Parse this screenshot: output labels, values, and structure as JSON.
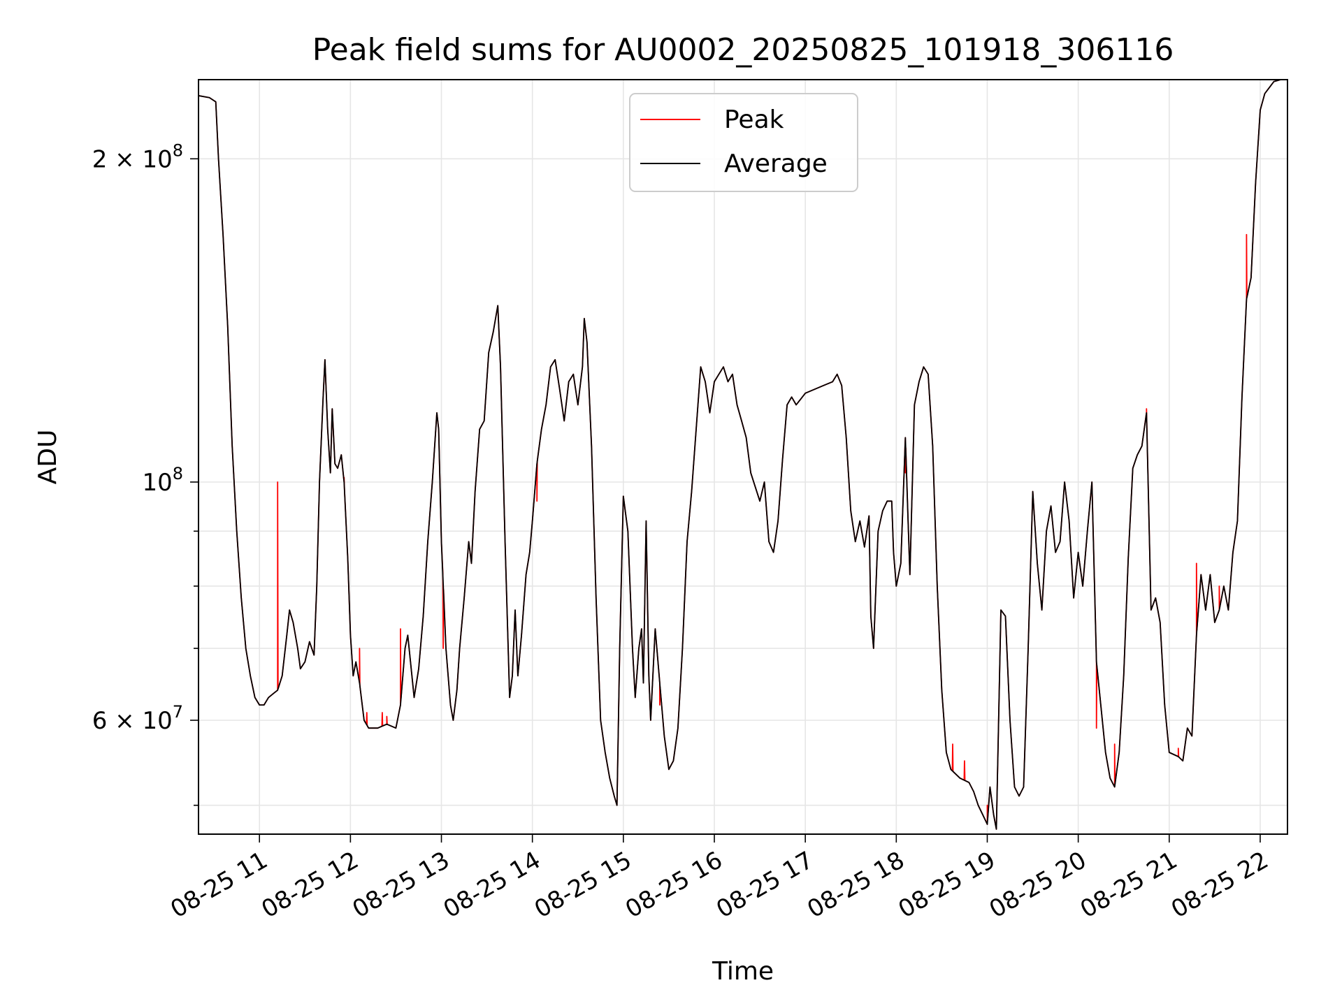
{
  "chart_data": {
    "type": "line",
    "title": "Peak field sums for AU0002_20250825_101918_306116",
    "xlabel": "Time",
    "ylabel": "ADU",
    "yscale": "log",
    "ylim": [
      47000000,
      237000000
    ],
    "xlim_hours": [
      10.33,
      22.3
    ],
    "grid": true,
    "legend_position": "upper center",
    "xticks": [
      {
        "hour": 11,
        "label": "08-25 11"
      },
      {
        "hour": 12,
        "label": "08-25 12"
      },
      {
        "hour": 13,
        "label": "08-25 13"
      },
      {
        "hour": 14,
        "label": "08-25 14"
      },
      {
        "hour": 15,
        "label": "08-25 15"
      },
      {
        "hour": 16,
        "label": "08-25 16"
      },
      {
        "hour": 17,
        "label": "08-25 17"
      },
      {
        "hour": 18,
        "label": "08-25 18"
      },
      {
        "hour": 19,
        "label": "08-25 19"
      },
      {
        "hour": 20,
        "label": "08-25 20"
      },
      {
        "hour": 21,
        "label": "08-25 21"
      },
      {
        "hour": 22,
        "label": "08-25 22"
      }
    ],
    "yticks_major": [
      {
        "value": 60000000,
        "mantissa": "6",
        "exponent": "7"
      },
      {
        "value": 100000000,
        "mantissa": "",
        "exponent": "8"
      },
      {
        "value": 200000000,
        "mantissa": "2",
        "exponent": "8"
      }
    ],
    "yticks_minor": [
      50000000,
      70000000,
      80000000,
      90000000
    ],
    "series": [
      {
        "name": "Average",
        "color": "#000000",
        "points": [
          [
            10.33,
            229
          ],
          [
            10.45,
            228
          ],
          [
            10.52,
            226
          ],
          [
            10.55,
            200
          ],
          [
            10.6,
            170
          ],
          [
            10.65,
            140
          ],
          [
            10.7,
            108
          ],
          [
            10.75,
            90
          ],
          [
            10.8,
            78
          ],
          [
            10.85,
            70
          ],
          [
            10.9,
            66
          ],
          [
            10.95,
            63
          ],
          [
            11.0,
            62
          ],
          [
            11.05,
            62
          ],
          [
            11.1,
            63
          ],
          [
            11.15,
            63.5
          ],
          [
            11.2,
            64
          ],
          [
            11.25,
            66
          ],
          [
            11.3,
            72
          ],
          [
            11.33,
            76
          ],
          [
            11.37,
            74
          ],
          [
            11.42,
            70
          ],
          [
            11.45,
            67
          ],
          [
            11.5,
            68
          ],
          [
            11.55,
            71
          ],
          [
            11.6,
            69
          ],
          [
            11.63,
            80
          ],
          [
            11.66,
            100
          ],
          [
            11.7,
            120
          ],
          [
            11.72,
            130
          ],
          [
            11.75,
            112
          ],
          [
            11.78,
            102
          ],
          [
            11.8,
            117
          ],
          [
            11.83,
            104
          ],
          [
            11.86,
            103
          ],
          [
            11.9,
            106
          ],
          [
            11.93,
            100
          ],
          [
            11.97,
            85
          ],
          [
            12.0,
            72
          ],
          [
            12.03,
            66
          ],
          [
            12.06,
            68
          ],
          [
            12.1,
            65
          ],
          [
            12.15,
            60
          ],
          [
            12.2,
            59
          ],
          [
            12.3,
            59
          ],
          [
            12.4,
            59.5
          ],
          [
            12.5,
            59
          ],
          [
            12.55,
            62
          ],
          [
            12.6,
            70
          ],
          [
            12.63,
            72
          ],
          [
            12.66,
            68
          ],
          [
            12.7,
            63
          ],
          [
            12.75,
            67
          ],
          [
            12.8,
            75
          ],
          [
            12.85,
            88
          ],
          [
            12.9,
            100
          ],
          [
            12.95,
            116
          ],
          [
            12.97,
            112
          ],
          [
            13.0,
            88
          ],
          [
            13.05,
            70
          ],
          [
            13.1,
            62
          ],
          [
            13.13,
            60
          ],
          [
            13.17,
            64
          ],
          [
            13.2,
            70
          ],
          [
            13.25,
            78
          ],
          [
            13.3,
            88
          ],
          [
            13.33,
            84
          ],
          [
            13.37,
            98
          ],
          [
            13.42,
            112
          ],
          [
            13.47,
            114
          ],
          [
            13.52,
            132
          ],
          [
            13.57,
            138
          ],
          [
            13.62,
            146
          ],
          [
            13.65,
            128
          ],
          [
            13.7,
            88
          ],
          [
            13.75,
            63
          ],
          [
            13.78,
            66
          ],
          [
            13.81,
            76
          ],
          [
            13.84,
            66
          ],
          [
            13.88,
            72
          ],
          [
            13.93,
            82
          ],
          [
            13.97,
            86
          ],
          [
            14.0,
            92
          ],
          [
            14.05,
            104
          ],
          [
            14.1,
            112
          ],
          [
            14.15,
            118
          ],
          [
            14.2,
            128
          ],
          [
            14.25,
            130
          ],
          [
            14.3,
            122
          ],
          [
            14.35,
            114
          ],
          [
            14.4,
            124
          ],
          [
            14.45,
            126
          ],
          [
            14.5,
            118
          ],
          [
            14.55,
            128
          ],
          [
            14.57,
            142
          ],
          [
            14.6,
            135
          ],
          [
            14.65,
            108
          ],
          [
            14.7,
            78
          ],
          [
            14.75,
            60
          ],
          [
            14.8,
            56
          ],
          [
            14.85,
            53
          ],
          [
            14.9,
            51
          ],
          [
            14.93,
            50
          ],
          [
            14.96,
            70
          ],
          [
            15.0,
            97
          ],
          [
            15.05,
            90
          ],
          [
            15.1,
            70
          ],
          [
            15.13,
            63
          ],
          [
            15.17,
            70
          ],
          [
            15.2,
            73
          ],
          [
            15.22,
            65
          ],
          [
            15.25,
            92
          ],
          [
            15.28,
            66
          ],
          [
            15.3,
            60
          ],
          [
            15.35,
            73
          ],
          [
            15.4,
            65
          ],
          [
            15.45,
            58
          ],
          [
            15.5,
            54
          ],
          [
            15.55,
            55
          ],
          [
            15.6,
            59
          ],
          [
            15.65,
            70
          ],
          [
            15.7,
            88
          ],
          [
            15.75,
            98
          ],
          [
            15.8,
            112
          ],
          [
            15.85,
            128
          ],
          [
            15.9,
            124
          ],
          [
            15.95,
            116
          ],
          [
            16.0,
            124
          ],
          [
            16.05,
            126
          ],
          [
            16.1,
            128
          ],
          [
            16.15,
            124
          ],
          [
            16.2,
            126
          ],
          [
            16.25,
            118
          ],
          [
            16.3,
            114
          ],
          [
            16.35,
            110
          ],
          [
            16.4,
            102
          ],
          [
            16.5,
            96
          ],
          [
            16.55,
            100
          ],
          [
            16.6,
            88
          ],
          [
            16.65,
            86
          ],
          [
            16.7,
            92
          ],
          [
            16.75,
            105
          ],
          [
            16.8,
            118
          ],
          [
            16.85,
            120
          ],
          [
            16.9,
            118
          ],
          [
            17.0,
            121
          ],
          [
            17.1,
            122
          ],
          [
            17.2,
            123
          ],
          [
            17.3,
            124
          ],
          [
            17.35,
            126
          ],
          [
            17.4,
            123
          ],
          [
            17.45,
            110
          ],
          [
            17.5,
            94
          ],
          [
            17.55,
            88
          ],
          [
            17.6,
            92
          ],
          [
            17.65,
            87
          ],
          [
            17.7,
            93
          ],
          [
            17.72,
            75
          ],
          [
            17.75,
            70
          ],
          [
            17.8,
            90
          ],
          [
            17.85,
            94
          ],
          [
            17.9,
            96
          ],
          [
            17.95,
            96
          ],
          [
            17.97,
            86
          ],
          [
            18.0,
            80
          ],
          [
            18.05,
            84
          ],
          [
            18.1,
            110
          ],
          [
            18.13,
            92
          ],
          [
            18.15,
            82
          ],
          [
            18.2,
            118
          ],
          [
            18.25,
            124
          ],
          [
            18.3,
            128
          ],
          [
            18.35,
            126
          ],
          [
            18.4,
            108
          ],
          [
            18.45,
            80
          ],
          [
            18.5,
            64
          ],
          [
            18.55,
            56
          ],
          [
            18.6,
            54
          ],
          [
            18.7,
            53
          ],
          [
            18.8,
            52.5
          ],
          [
            18.85,
            51.5
          ],
          [
            18.9,
            50
          ],
          [
            18.95,
            49
          ],
          [
            19.0,
            48
          ],
          [
            19.03,
            52
          ],
          [
            19.07,
            49
          ],
          [
            19.1,
            47.5
          ],
          [
            19.15,
            76
          ],
          [
            19.2,
            75
          ],
          [
            19.25,
            60
          ],
          [
            19.3,
            52
          ],
          [
            19.35,
            51
          ],
          [
            19.4,
            52
          ],
          [
            19.45,
            70
          ],
          [
            19.5,
            98
          ],
          [
            19.55,
            84
          ],
          [
            19.6,
            76
          ],
          [
            19.65,
            90
          ],
          [
            19.7,
            95
          ],
          [
            19.75,
            86
          ],
          [
            19.8,
            88
          ],
          [
            19.85,
            100
          ],
          [
            19.9,
            92
          ],
          [
            19.95,
            78
          ],
          [
            20.0,
            86
          ],
          [
            20.05,
            80
          ],
          [
            20.1,
            90
          ],
          [
            20.15,
            100
          ],
          [
            20.2,
            68
          ],
          [
            20.3,
            56
          ],
          [
            20.35,
            53
          ],
          [
            20.4,
            52
          ],
          [
            20.45,
            56
          ],
          [
            20.5,
            66
          ],
          [
            20.55,
            85
          ],
          [
            20.6,
            103
          ],
          [
            20.65,
            106
          ],
          [
            20.7,
            108
          ],
          [
            20.75,
            116
          ],
          [
            20.8,
            76
          ],
          [
            20.85,
            78
          ],
          [
            20.9,
            74
          ],
          [
            20.95,
            62
          ],
          [
            21.0,
            56
          ],
          [
            21.1,
            55.5
          ],
          [
            21.15,
            55
          ],
          [
            21.2,
            59
          ],
          [
            21.25,
            58
          ],
          [
            21.3,
            72
          ],
          [
            21.35,
            82
          ],
          [
            21.4,
            76
          ],
          [
            21.45,
            82
          ],
          [
            21.5,
            74
          ],
          [
            21.55,
            76
          ],
          [
            21.6,
            80
          ],
          [
            21.65,
            76
          ],
          [
            21.7,
            86
          ],
          [
            21.75,
            92
          ],
          [
            21.8,
            120
          ],
          [
            21.85,
            148
          ],
          [
            21.9,
            155
          ],
          [
            21.95,
            190
          ],
          [
            22.0,
            222
          ],
          [
            22.05,
            230
          ],
          [
            22.15,
            236
          ],
          [
            22.3,
            238
          ]
        ]
      },
      {
        "name": "Peak",
        "color": "#ff0000",
        "spikes": [
          [
            11.2,
            100
          ],
          [
            11.93,
            101
          ],
          [
            12.1,
            70
          ],
          [
            12.18,
            61
          ],
          [
            12.35,
            61
          ],
          [
            12.4,
            60.5
          ],
          [
            12.55,
            73
          ],
          [
            13.02,
            70
          ],
          [
            14.05,
            96
          ],
          [
            15.4,
            62
          ],
          [
            18.1,
            102
          ],
          [
            18.62,
            57
          ],
          [
            18.75,
            55
          ],
          [
            19.0,
            50
          ],
          [
            20.2,
            59
          ],
          [
            20.4,
            57
          ],
          [
            20.75,
            117
          ],
          [
            21.1,
            56.5
          ],
          [
            21.3,
            84
          ],
          [
            21.55,
            80
          ],
          [
            21.85,
            170
          ]
        ]
      }
    ]
  },
  "legend": {
    "items": [
      {
        "label": "Peak",
        "color": "#ff0000"
      },
      {
        "label": "Average",
        "color": "#000000"
      }
    ]
  }
}
